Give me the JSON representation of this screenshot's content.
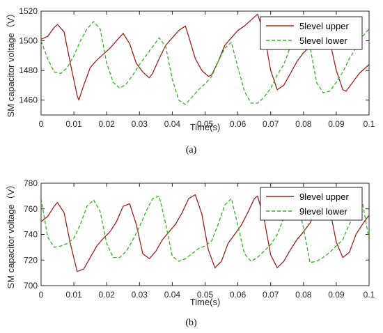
{
  "chart_data": [
    {
      "type": "line",
      "panel_label": "(a)",
      "xlabel": "Time(s)",
      "ylabel": "SM capacitor voltage（V）",
      "xlim": [
        0,
        0.1
      ],
      "ylim": [
        1450,
        1520
      ],
      "x_ticks": [
        0,
        0.01,
        0.02,
        0.03,
        0.04,
        0.05,
        0.06,
        0.07,
        0.08,
        0.09,
        0.1
      ],
      "x_tick_labels": [
        "0",
        "0.01",
        "0.02",
        "0.03",
        "0.04",
        "0.05",
        "0.06",
        "0.07",
        "0.08",
        "0.09",
        "0.1"
      ],
      "y_ticks": [
        1460,
        1480,
        1500,
        1520
      ],
      "y_tick_labels": [
        "1460",
        "1480",
        "1500",
        "1520"
      ],
      "legend_position": "top-right",
      "grid": false,
      "series": [
        {
          "name": "5level upper",
          "color": "#a0201a",
          "style": "solid",
          "x": [
            0,
            0.002,
            0.004,
            0.005,
            0.007,
            0.009,
            0.011,
            0.0115,
            0.013,
            0.015,
            0.017,
            0.019,
            0.021,
            0.023,
            0.025,
            0.027,
            0.029,
            0.031,
            0.033,
            0.034,
            0.036,
            0.038,
            0.04,
            0.042,
            0.044,
            0.045,
            0.047,
            0.049,
            0.051,
            0.052,
            0.054,
            0.056,
            0.058,
            0.06,
            0.062,
            0.064,
            0.066,
            0.068,
            0.07,
            0.072,
            0.074,
            0.076,
            0.078,
            0.08,
            0.082,
            0.084,
            0.086,
            0.088,
            0.09,
            0.092,
            0.093,
            0.095,
            0.097,
            0.099,
            0.1
          ],
          "y": [
            1501,
            1503,
            1509,
            1511,
            1506,
            1484,
            1463,
            1460,
            1470,
            1482,
            1487,
            1491,
            1495,
            1500,
            1505,
            1498,
            1485,
            1479,
            1475,
            1478,
            1488,
            1497,
            1502,
            1507,
            1510,
            1503,
            1488,
            1480,
            1476,
            1477,
            1486,
            1497,
            1502,
            1507,
            1510,
            1514,
            1518,
            1505,
            1480,
            1467,
            1470,
            1478,
            1486,
            1492,
            1496,
            1505,
            1510,
            1500,
            1480,
            1467,
            1466,
            1472,
            1478,
            1482,
            1484
          ]
        },
        {
          "name": "5level lower",
          "color": "#2db51a",
          "style": "dashed",
          "x": [
            0,
            0.002,
            0.004,
            0.006,
            0.008,
            0.01,
            0.012,
            0.014,
            0.016,
            0.018,
            0.02,
            0.022,
            0.024,
            0.026,
            0.028,
            0.03,
            0.032,
            0.034,
            0.036,
            0.038,
            0.04,
            0.042,
            0.044,
            0.046,
            0.048,
            0.05,
            0.052,
            0.054,
            0.056,
            0.058,
            0.06,
            0.062,
            0.064,
            0.066,
            0.068,
            0.07,
            0.072,
            0.074,
            0.076,
            0.078,
            0.08,
            0.082,
            0.084,
            0.086,
            0.088,
            0.09,
            0.092,
            0.094,
            0.096,
            0.098,
            0.1
          ],
          "y": [
            1500,
            1488,
            1479,
            1478,
            1482,
            1490,
            1500,
            1508,
            1513,
            1508,
            1485,
            1472,
            1468,
            1471,
            1477,
            1484,
            1490,
            1496,
            1502,
            1496,
            1474,
            1460,
            1457,
            1462,
            1467,
            1471,
            1476,
            1486,
            1495,
            1499,
            1482,
            1466,
            1458,
            1458,
            1462,
            1468,
            1477,
            1484,
            1496,
            1508,
            1512,
            1496,
            1472,
            1465,
            1466,
            1472,
            1479,
            1488,
            1495,
            1503,
            1508
          ]
        }
      ]
    },
    {
      "type": "line",
      "panel_label": "(b)",
      "xlabel": "Time(s)",
      "ylabel": "SM capacitor voltage（V）",
      "xlim": [
        0,
        0.1
      ],
      "ylim": [
        700,
        780
      ],
      "x_ticks": [
        0,
        0.01,
        0.02,
        0.03,
        0.04,
        0.05,
        0.06,
        0.07,
        0.08,
        0.09,
        0.1
      ],
      "x_tick_labels": [
        "0",
        "0.01",
        "0.02",
        "0.03",
        "0.04",
        "0.05",
        "0.06",
        "0.07",
        "0.08",
        "0.09",
        "0.1"
      ],
      "y_ticks": [
        700,
        720,
        740,
        760,
        780
      ],
      "y_tick_labels": [
        "700",
        "720",
        "740",
        "760",
        "780"
      ],
      "legend_position": "top-right",
      "grid": false,
      "series": [
        {
          "name": "9level upper",
          "color": "#a0201a",
          "style": "solid",
          "x": [
            0,
            0.002,
            0.004,
            0.005,
            0.007,
            0.009,
            0.011,
            0.013,
            0.015,
            0.017,
            0.019,
            0.021,
            0.023,
            0.025,
            0.027,
            0.029,
            0.031,
            0.033,
            0.035,
            0.037,
            0.039,
            0.041,
            0.043,
            0.045,
            0.047,
            0.049,
            0.051,
            0.053,
            0.055,
            0.057,
            0.059,
            0.061,
            0.063,
            0.065,
            0.066,
            0.068,
            0.07,
            0.072,
            0.074,
            0.076,
            0.078,
            0.08,
            0.082,
            0.084,
            0.086,
            0.088,
            0.09,
            0.092,
            0.094,
            0.096,
            0.098,
            0.1
          ],
          "y": [
            750,
            754,
            762,
            765,
            757,
            732,
            711,
            713,
            722,
            731,
            737,
            742,
            750,
            762,
            764,
            748,
            725,
            721,
            727,
            736,
            742,
            748,
            757,
            768,
            771,
            756,
            728,
            714,
            719,
            733,
            740,
            747,
            757,
            768,
            770,
            752,
            724,
            714,
            719,
            728,
            736,
            742,
            749,
            759,
            768,
            760,
            734,
            722,
            726,
            740,
            748,
            755
          ]
        },
        {
          "name": "9level lower",
          "color": "#2db51a",
          "style": "dashed",
          "x": [
            0,
            0.002,
            0.004,
            0.006,
            0.008,
            0.01,
            0.012,
            0.014,
            0.016,
            0.018,
            0.02,
            0.022,
            0.024,
            0.026,
            0.028,
            0.03,
            0.032,
            0.034,
            0.036,
            0.038,
            0.04,
            0.042,
            0.044,
            0.046,
            0.048,
            0.05,
            0.052,
            0.054,
            0.056,
            0.058,
            0.06,
            0.062,
            0.064,
            0.066,
            0.068,
            0.07,
            0.072,
            0.074,
            0.076,
            0.078,
            0.08,
            0.082,
            0.084,
            0.086,
            0.088,
            0.09,
            0.092,
            0.094,
            0.096,
            0.098,
            0.1
          ],
          "y": [
            768,
            738,
            730,
            731,
            733,
            737,
            748,
            762,
            767,
            758,
            733,
            722,
            722,
            727,
            736,
            746,
            758,
            768,
            770,
            748,
            723,
            719,
            721,
            725,
            729,
            731,
            735,
            748,
            763,
            768,
            747,
            725,
            719,
            722,
            727,
            732,
            740,
            753,
            765,
            768,
            745,
            718,
            719,
            722,
            726,
            731,
            736,
            748,
            759,
            765,
            736
          ]
        }
      ]
    }
  ]
}
